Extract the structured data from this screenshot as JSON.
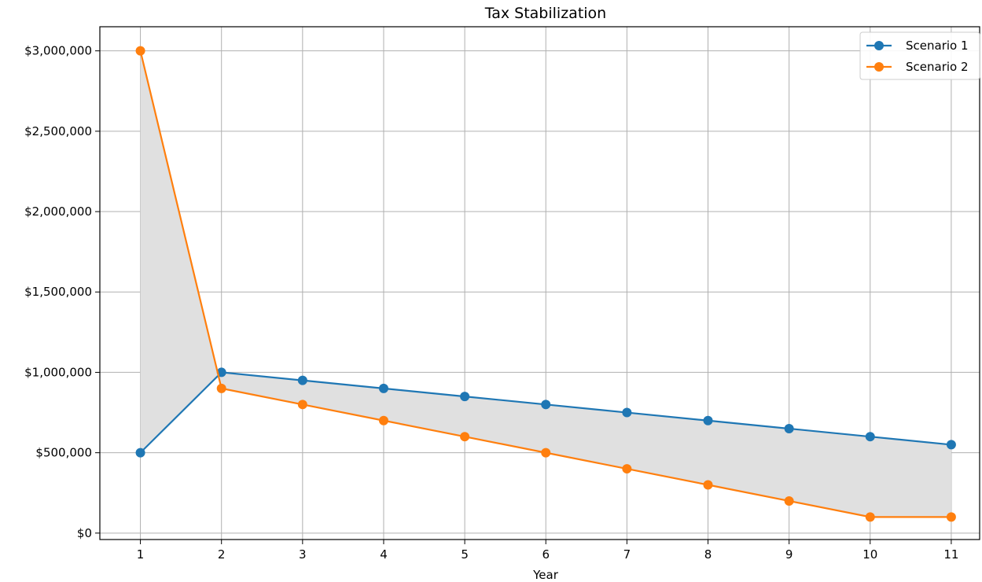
{
  "chart_data": {
    "type": "line",
    "title": "Tax Stabilization",
    "xlabel": "Year",
    "ylabel": "",
    "x": [
      1,
      2,
      3,
      4,
      5,
      6,
      7,
      8,
      9,
      10,
      11
    ],
    "series": [
      {
        "name": "Scenario 1",
        "color": "#1f77b4",
        "values": [
          500000,
          1000000,
          950000,
          900000,
          850000,
          800000,
          750000,
          700000,
          650000,
          600000,
          550000
        ]
      },
      {
        "name": "Scenario 2",
        "color": "#ff7f0e",
        "values": [
          3000000,
          900000,
          800000,
          700000,
          600000,
          500000,
          400000,
          300000,
          200000,
          100000,
          100000
        ]
      }
    ],
    "fill_between": {
      "series": [
        0,
        1
      ],
      "color": "#e0e0e0"
    },
    "xlim": [
      0.5,
      11.35
    ],
    "ylim": [
      -40000,
      3150000
    ],
    "y_ticks": [
      0,
      500000,
      1000000,
      1500000,
      2000000,
      2500000,
      3000000
    ],
    "y_tick_labels": [
      "$0",
      "$500,000",
      "$1,000,000",
      "$1,500,000",
      "$2,000,000",
      "$2,500,000",
      "$3,000,000"
    ],
    "x_ticks": [
      1,
      2,
      3,
      4,
      5,
      6,
      7,
      8,
      9,
      10,
      11
    ],
    "x_tick_labels": [
      "1",
      "2",
      "3",
      "4",
      "5",
      "6",
      "7",
      "8",
      "9",
      "10",
      "11"
    ],
    "grid": true,
    "legend_position": "top-right"
  }
}
